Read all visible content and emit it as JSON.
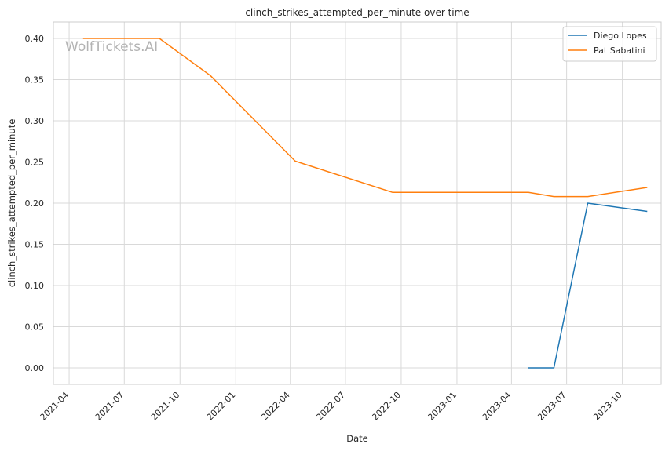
{
  "watermark": "WolfTickets.AI",
  "chart_data": {
    "type": "line",
    "title": "clinch_strikes_attempted_per_minute over time",
    "xlabel": "Date",
    "ylabel": "clinch_strikes_attempted_per_minute",
    "x_type": "date",
    "xlim": [
      "2021-03-06",
      "2023-12-04"
    ],
    "ylim": [
      -0.02,
      0.42
    ],
    "x_ticks": [
      "2021-04-01",
      "2021-07-01",
      "2021-10-01",
      "2022-01-01",
      "2022-04-01",
      "2022-07-01",
      "2022-10-01",
      "2023-01-01",
      "2023-04-01",
      "2023-07-01",
      "2023-10-01"
    ],
    "x_tick_labels": [
      "2021-04",
      "2021-07",
      "2021-10",
      "2022-01",
      "2022-04",
      "2022-07",
      "2022-10",
      "2023-01",
      "2023-04",
      "2023-07",
      "2023-10"
    ],
    "y_ticks": [
      0.0,
      0.05,
      0.1,
      0.15,
      0.2,
      0.25,
      0.3,
      0.35,
      0.4
    ],
    "y_tick_labels": [
      "0.00",
      "0.05",
      "0.10",
      "0.15",
      "0.20",
      "0.25",
      "0.30",
      "0.35",
      "0.40"
    ],
    "grid": true,
    "legend_position": "top-right",
    "series": [
      {
        "name": "Diego Lopes",
        "color": "#1f77b4",
        "x": [
          "2023-04-29",
          "2023-06-10",
          "2023-08-05",
          "2023-11-11"
        ],
        "y": [
          0.0,
          0.0,
          0.2,
          0.19
        ]
      },
      {
        "name": "Pat Sabatini",
        "color": "#ff7f0e",
        "x": [
          "2021-04-24",
          "2021-08-28",
          "2021-11-20",
          "2022-04-09",
          "2022-09-17",
          "2023-04-29",
          "2023-06-10",
          "2023-08-05",
          "2023-11-11"
        ],
        "y": [
          0.4,
          0.4,
          0.355,
          0.251,
          0.213,
          0.213,
          0.208,
          0.208,
          0.219
        ]
      }
    ]
  }
}
